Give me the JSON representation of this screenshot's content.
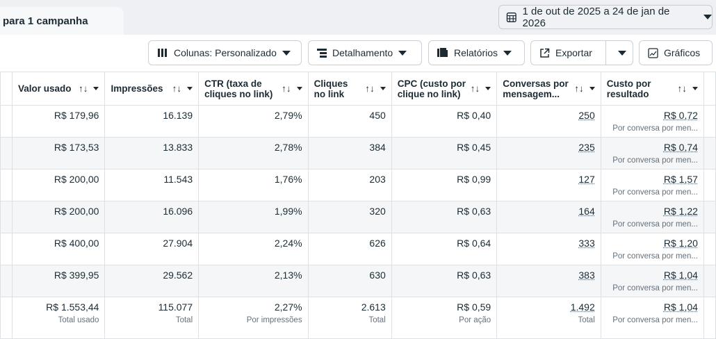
{
  "tab": {
    "label": "para 1 campanha"
  },
  "date_range": {
    "icon": "calendar-icon",
    "label": "1 de out de 2025 a 24 de jan de 2026"
  },
  "toolbar": {
    "columns": "Colunas: Personalizado",
    "breakdown": "Detalhamento",
    "reports": "Relatórios",
    "export": "Exportar",
    "charts": "Gráficos"
  },
  "columns": [
    "Valor usado",
    "Impressões",
    "CTR (taxa de cliques no link)",
    "Cliques no link",
    "CPC (custo por clique no link)",
    "Conversas por mensagem...",
    "Custo por resultado"
  ],
  "sort_glyph": "↑↓",
  "rows": [
    [
      "R$ 179,96",
      "16.139",
      "2,79%",
      "450",
      "R$ 0,40",
      "250",
      "R$ 0,72",
      "Por conversa por men..."
    ],
    [
      "R$ 173,53",
      "13.833",
      "2,78%",
      "384",
      "R$ 0,45",
      "235",
      "R$ 0,74",
      "Por conversa por men..."
    ],
    [
      "R$ 200,00",
      "11.543",
      "1,76%",
      "203",
      "R$ 0,99",
      "127",
      "R$ 1,57",
      "Por conversa por men..."
    ],
    [
      "R$ 200,00",
      "16.096",
      "1,99%",
      "320",
      "R$ 0,63",
      "164",
      "R$ 1,22",
      "Por conversa por men..."
    ],
    [
      "R$ 400,00",
      "27.904",
      "2,24%",
      "626",
      "R$ 0,64",
      "333",
      "R$ 1,20",
      "Por conversa por men..."
    ],
    [
      "R$ 399,95",
      "29.562",
      "2,13%",
      "630",
      "R$ 0,63",
      "383",
      "R$ 1,04",
      "Por conversa por men..."
    ]
  ],
  "totals": [
    {
      "value": "R$ 1.553,44",
      "label": "Total usado"
    },
    {
      "value": "115.077",
      "label": "Total"
    },
    {
      "value": "2,27%",
      "label": "Por impressões"
    },
    {
      "value": "2.613",
      "label": "Total"
    },
    {
      "value": "R$ 0,59",
      "label": "Por ação"
    },
    {
      "value": "1.492",
      "label": "Total"
    },
    {
      "value": "R$ 1,04",
      "label": "Por conversa por men..."
    }
  ]
}
